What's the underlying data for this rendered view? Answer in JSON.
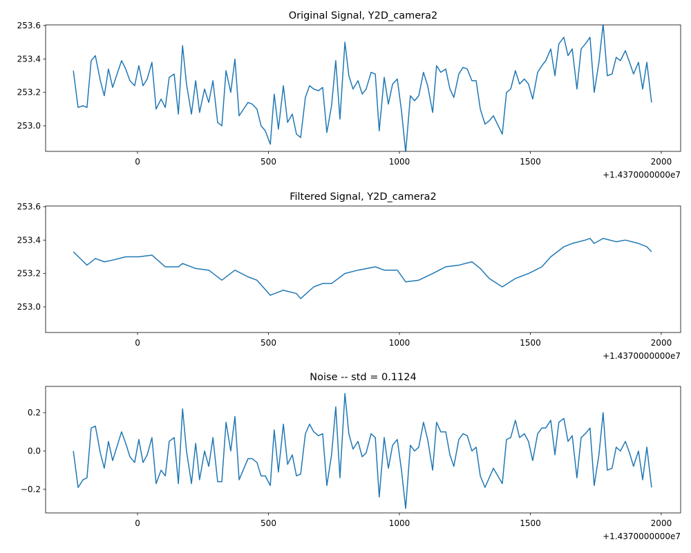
{
  "chart_data": [
    {
      "type": "line",
      "title": "Original Signal, Y2D_camera2",
      "x_offset_label": "+1.4370000000e7",
      "x": [
        -245,
        -227,
        -208,
        -193,
        -177,
        -161,
        -142,
        -127,
        -111,
        -95,
        -61,
        -45,
        -29,
        -11,
        5,
        21,
        37,
        55,
        71,
        90,
        106,
        121,
        140,
        156,
        172,
        187,
        206,
        222,
        237,
        256,
        272,
        288,
        306,
        322,
        338,
        356,
        372,
        388,
        422,
        438,
        456,
        472,
        488,
        507,
        522,
        538,
        557,
        573,
        591,
        607,
        623,
        641,
        657,
        673,
        691,
        707,
        723,
        741,
        757,
        773,
        792,
        807,
        823,
        842,
        858,
        873,
        892,
        908,
        923,
        942,
        958,
        974,
        992,
        1008,
        1024,
        1042,
        1058,
        1074,
        1092,
        1108,
        1127,
        1142,
        1158,
        1177,
        1193,
        1208,
        1227,
        1243,
        1259,
        1277,
        1293,
        1309,
        1327,
        1343,
        1359,
        1393,
        1409,
        1425,
        1443,
        1459,
        1477,
        1493,
        1509,
        1528,
        1544,
        1559,
        1578,
        1594,
        1609,
        1628,
        1644,
        1660,
        1678,
        1694,
        1710,
        1728,
        1744,
        1762,
        1778,
        1794,
        1812,
        1828,
        1844,
        1863,
        1879,
        1894,
        1913,
        1929,
        1945,
        1963
      ],
      "series": [
        {
          "color": "#1f77b4",
          "values": [
            253.33,
            253.11,
            253.12,
            253.11,
            253.39,
            253.42,
            253.27,
            253.18,
            253.34,
            253.23,
            253.39,
            253.34,
            253.27,
            253.24,
            253.36,
            253.24,
            253.28,
            253.38,
            253.1,
            253.16,
            253.11,
            253.29,
            253.31,
            253.07,
            253.48,
            253.25,
            253.07,
            253.27,
            253.08,
            253.22,
            253.14,
            253.27,
            253.02,
            253.0,
            253.33,
            253.2,
            253.4,
            253.06,
            253.14,
            253.13,
            253.1,
            253.0,
            252.97,
            252.89,
            253.19,
            252.98,
            253.24,
            253.02,
            253.07,
            252.95,
            252.93,
            253.17,
            253.24,
            253.22,
            253.21,
            253.23,
            252.96,
            253.12,
            253.39,
            253.04,
            253.5,
            253.3,
            253.22,
            253.27,
            253.19,
            253.22,
            253.32,
            253.31,
            252.97,
            253.29,
            253.13,
            253.25,
            253.28,
            253.09,
            252.84,
            253.18,
            253.15,
            253.18,
            253.32,
            253.24,
            253.08,
            253.36,
            253.32,
            253.34,
            253.22,
            253.17,
            253.31,
            253.35,
            253.34,
            253.27,
            253.27,
            253.1,
            253.01,
            253.03,
            253.06,
            252.95,
            253.2,
            253.22,
            253.33,
            253.25,
            253.28,
            253.25,
            253.16,
            253.32,
            253.36,
            253.39,
            253.46,
            253.3,
            253.49,
            253.53,
            253.42,
            253.46,
            253.22,
            253.46,
            253.49,
            253.53,
            253.2,
            253.38,
            253.61,
            253.3,
            253.31,
            253.41,
            253.39,
            253.45,
            253.38,
            253.31,
            253.38,
            253.22,
            253.38,
            253.14
          ]
        }
      ],
      "xlim": [
        -351,
        2074
      ],
      "xticks": [
        0,
        500,
        1000,
        1500,
        2000
      ],
      "ylim": [
        252.847,
        253.604
      ],
      "yticks": [
        {
          "value": 253,
          "label": "253.0"
        },
        253.2,
        253.4,
        253.6
      ]
    },
    {
      "type": "line",
      "title": "Filtered Signal, Y2D_camera2",
      "x_offset_label": "+1.4370000000e7",
      "x": [
        -245,
        -193,
        -161,
        -127,
        -95,
        -45,
        5,
        55,
        106,
        156,
        172,
        222,
        272,
        322,
        372,
        422,
        456,
        507,
        557,
        607,
        623,
        673,
        707,
        741,
        792,
        842,
        908,
        942,
        992,
        1024,
        1074,
        1127,
        1177,
        1227,
        1277,
        1309,
        1343,
        1393,
        1443,
        1493,
        1544,
        1578,
        1628,
        1660,
        1710,
        1728,
        1744,
        1778,
        1828,
        1863,
        1913,
        1945,
        1963
      ],
      "series": [
        {
          "color": "#1f77b4",
          "values": [
            253.33,
            253.25,
            253.29,
            253.27,
            253.28,
            253.3,
            253.3,
            253.31,
            253.24,
            253.24,
            253.26,
            253.23,
            253.22,
            253.16,
            253.22,
            253.18,
            253.16,
            253.07,
            253.1,
            253.08,
            253.05,
            253.12,
            253.14,
            253.14,
            253.2,
            253.22,
            253.24,
            253.22,
            253.22,
            253.15,
            253.16,
            253.2,
            253.24,
            253.25,
            253.27,
            253.23,
            253.17,
            253.12,
            253.17,
            253.2,
            253.24,
            253.3,
            253.36,
            253.38,
            253.4,
            253.41,
            253.38,
            253.41,
            253.39,
            253.4,
            253.38,
            253.36,
            253.33
          ]
        }
      ],
      "xlim": [
        -351,
        2074
      ],
      "xticks": [
        0,
        500,
        1000,
        1500,
        2000
      ],
      "ylim": [
        252.847,
        253.604
      ],
      "yticks": [
        {
          "value": 253,
          "label": "253.0"
        },
        253.2,
        253.4,
        253.6
      ]
    },
    {
      "type": "line",
      "title": "Noise -- std = 0.1124",
      "x_offset_label": "+1.4370000000e7",
      "x": [
        -245,
        -227,
        -208,
        -193,
        -177,
        -161,
        -142,
        -127,
        -111,
        -95,
        -61,
        -45,
        -29,
        -11,
        5,
        21,
        37,
        55,
        71,
        90,
        106,
        121,
        140,
        156,
        172,
        187,
        206,
        222,
        237,
        256,
        272,
        288,
        306,
        322,
        338,
        356,
        372,
        388,
        422,
        438,
        456,
        472,
        488,
        507,
        522,
        538,
        557,
        573,
        591,
        607,
        623,
        641,
        657,
        673,
        691,
        707,
        723,
        741,
        757,
        773,
        792,
        807,
        823,
        842,
        858,
        873,
        892,
        908,
        923,
        942,
        958,
        974,
        992,
        1008,
        1024,
        1042,
        1058,
        1074,
        1092,
        1108,
        1127,
        1142,
        1158,
        1177,
        1193,
        1208,
        1227,
        1243,
        1259,
        1277,
        1293,
        1309,
        1327,
        1343,
        1359,
        1393,
        1409,
        1425,
        1443,
        1459,
        1477,
        1493,
        1509,
        1528,
        1544,
        1559,
        1578,
        1594,
        1609,
        1628,
        1644,
        1660,
        1678,
        1694,
        1710,
        1728,
        1744,
        1762,
        1778,
        1794,
        1812,
        1828,
        1844,
        1863,
        1879,
        1894,
        1913,
        1929,
        1945,
        1963
      ],
      "series": [
        {
          "color": "#1f77b4",
          "values": [
            0.0,
            -0.19,
            -0.15,
            -0.14,
            0.12,
            0.13,
            -0.01,
            -0.09,
            0.05,
            -0.05,
            0.1,
            0.04,
            -0.03,
            -0.06,
            0.06,
            -0.06,
            -0.02,
            0.07,
            -0.17,
            -0.1,
            -0.13,
            0.05,
            0.07,
            -0.17,
            0.22,
            0.0,
            -0.17,
            0.04,
            -0.15,
            0.0,
            -0.08,
            0.07,
            -0.16,
            -0.16,
            0.15,
            0.0,
            0.18,
            -0.15,
            -0.04,
            -0.04,
            -0.06,
            -0.13,
            -0.13,
            -0.18,
            0.11,
            -0.11,
            0.14,
            -0.07,
            -0.02,
            -0.13,
            -0.12,
            0.09,
            0.14,
            0.1,
            0.08,
            0.09,
            -0.18,
            -0.02,
            0.23,
            -0.14,
            0.3,
            0.09,
            0.01,
            0.05,
            -0.03,
            -0.01,
            0.09,
            0.07,
            -0.24,
            0.07,
            -0.09,
            0.03,
            0.06,
            -0.1,
            -0.3,
            0.03,
            0.0,
            0.02,
            0.15,
            0.06,
            -0.1,
            0.15,
            0.1,
            0.1,
            -0.02,
            -0.08,
            0.06,
            0.09,
            0.08,
            0.0,
            0.02,
            -0.13,
            -0.19,
            -0.14,
            -0.09,
            -0.17,
            0.06,
            0.07,
            0.16,
            0.07,
            0.09,
            0.05,
            -0.05,
            0.09,
            0.12,
            0.12,
            0.16,
            -0.02,
            0.15,
            0.17,
            0.05,
            0.08,
            -0.14,
            0.07,
            0.09,
            0.12,
            -0.18,
            -0.02,
            0.2,
            -0.1,
            -0.09,
            0.02,
            0.0,
            0.05,
            -0.01,
            -0.08,
            0.0,
            -0.15,
            0.02,
            -0.19
          ]
        }
      ],
      "xlim": [
        -351,
        2074
      ],
      "xticks": [
        0,
        500,
        1000,
        1500,
        2000
      ],
      "ylim": [
        -0.323,
        0.337
      ],
      "yticks": [
        {
          "value": -0.2,
          "label": "−0.2"
        },
        {
          "value": 0,
          "label": "0.0"
        },
        0.2
      ]
    }
  ]
}
